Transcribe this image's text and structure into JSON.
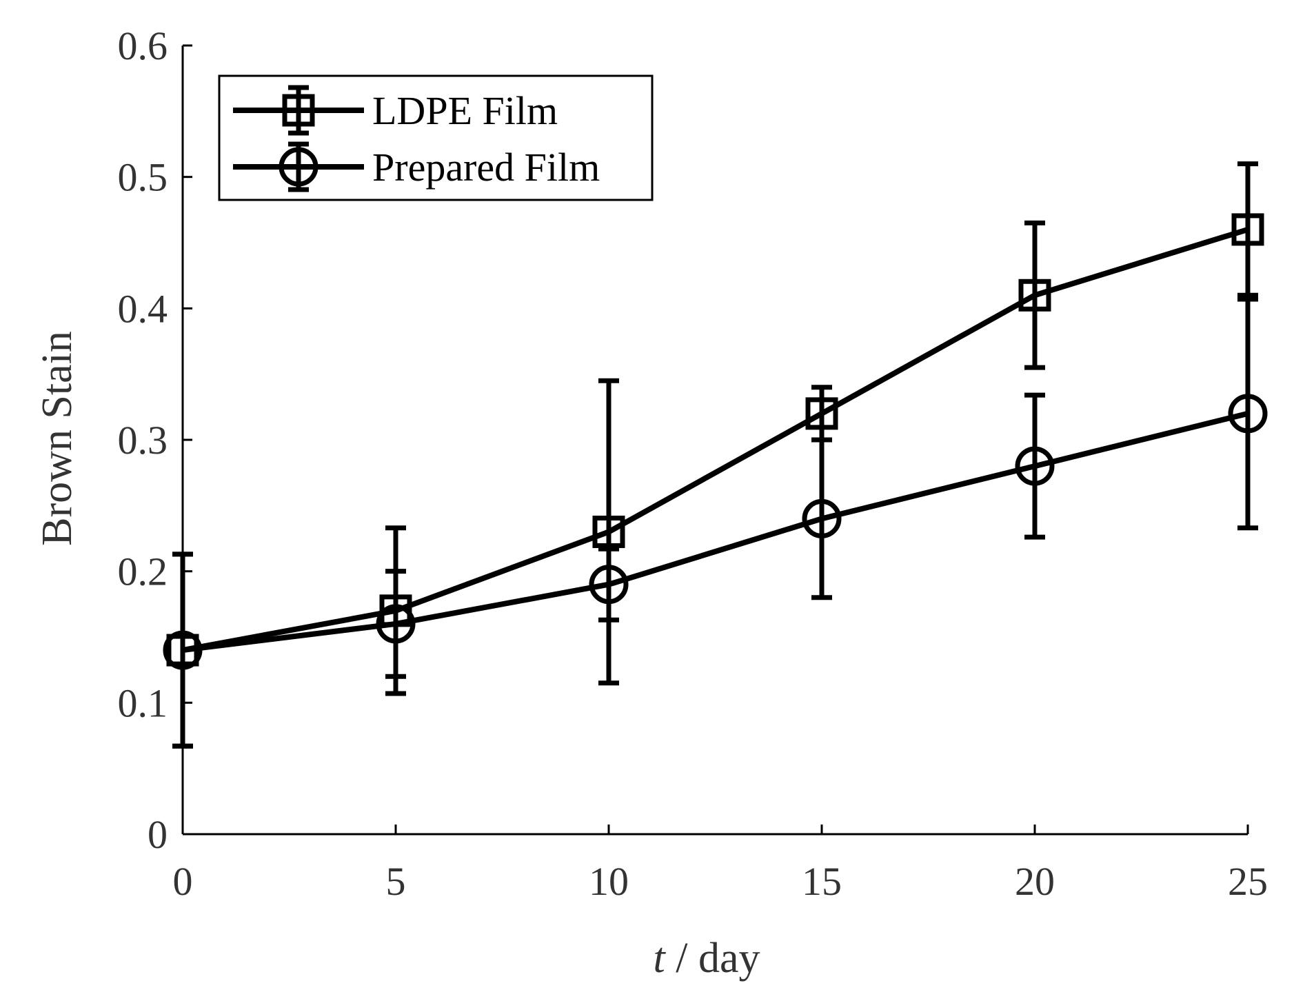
{
  "chart_data": {
    "type": "line",
    "xlabel_italic": "t",
    "xlabel_rest": " / day",
    "ylabel": "Brown Stain",
    "xlim": [
      0,
      25
    ],
    "ylim": [
      0,
      0.6
    ],
    "x_ticks": [
      "0",
      "5",
      "10",
      "15",
      "20",
      "25"
    ],
    "y_ticks": [
      "0",
      "0.1",
      "0.2",
      "0.3",
      "0.4",
      "0.5",
      "0.6"
    ],
    "x_tick_values": [
      0,
      5,
      10,
      15,
      20,
      25
    ],
    "y_tick_values": [
      0,
      0.1,
      0.2,
      0.3,
      0.4,
      0.5,
      0.6
    ],
    "legend_position": "top-left",
    "grid": false,
    "series": [
      {
        "name": "LDPE Film",
        "marker": "square",
        "x": [
          0,
          5,
          10,
          15,
          20,
          25
        ],
        "values": [
          0.14,
          0.17,
          0.23,
          0.32,
          0.41,
          0.46
        ],
        "errors": [
          0.073,
          0.063,
          0.115,
          0.02,
          0.055,
          0.05
        ]
      },
      {
        "name": "Prepared Film",
        "marker": "circle",
        "x": [
          0,
          5,
          10,
          15,
          20,
          25
        ],
        "values": [
          0.14,
          0.16,
          0.19,
          0.24,
          0.28,
          0.32
        ],
        "errors": [
          0.073,
          0.04,
          0.027,
          0.06,
          0.054,
          0.087
        ]
      }
    ],
    "colors": {
      "axis": "#000000",
      "series": "#000000",
      "text": "#333333"
    }
  }
}
